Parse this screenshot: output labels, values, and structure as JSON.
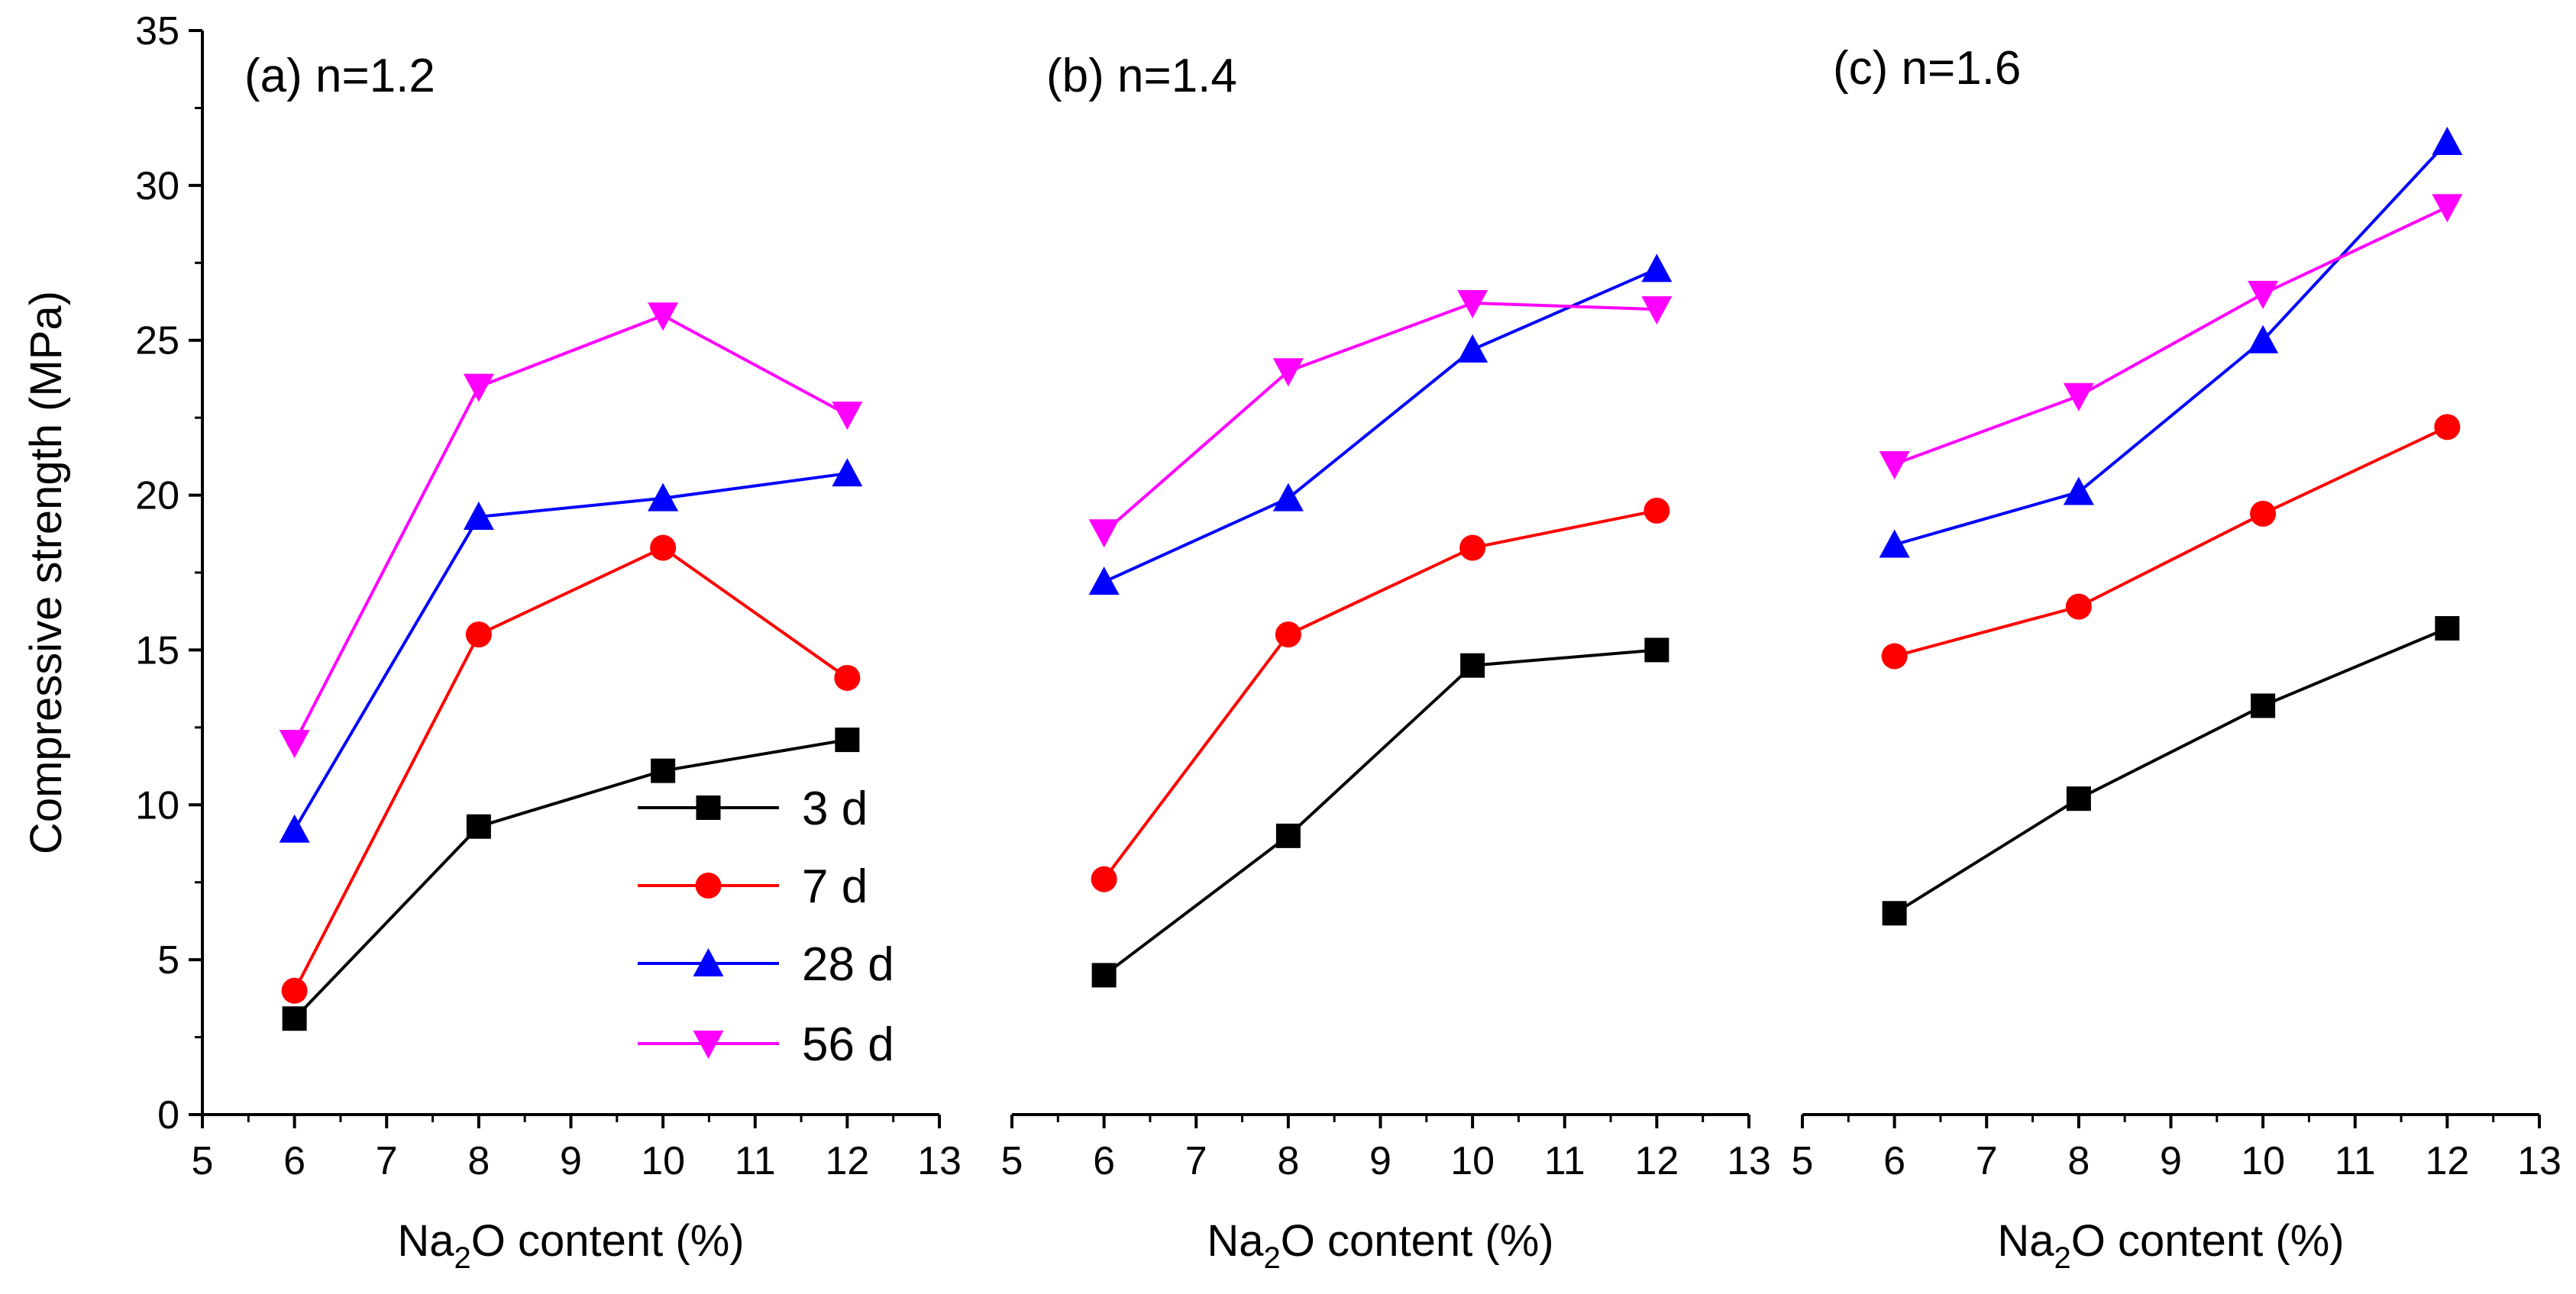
{
  "chart_data": {
    "type": "line",
    "ylabel": "Compressive strength (MPa)",
    "ylim": [
      0,
      35
    ],
    "yticks": [
      "0",
      "5",
      "10",
      "15",
      "20",
      "25",
      "30",
      "35"
    ],
    "xlabel": {
      "main": "Na",
      "sub": "2",
      "tail": "O content (%)"
    },
    "xlim": [
      5,
      13
    ],
    "xticks": [
      "5",
      "6",
      "7",
      "8",
      "9",
      "10",
      "11",
      "12",
      "13"
    ],
    "grid": false,
    "legend_placement": "bottom of first panel",
    "series_styles": [
      {
        "name": "3 d",
        "color": "#000000",
        "marker": "square"
      },
      {
        "name": "7 d",
        "color": "#ff0000",
        "marker": "circle"
      },
      {
        "name": "28 d",
        "color": "#0000ff",
        "marker": "triangle-up"
      },
      {
        "name": "56 d",
        "color": "#ff00ff",
        "marker": "triangle-down"
      }
    ],
    "panels": [
      {
        "title": "(a) n=1.2",
        "x": [
          6,
          8,
          10,
          12
        ],
        "series": [
          {
            "name": "3 d",
            "values": [
              3.1,
              9.3,
              11.1,
              12.1
            ]
          },
          {
            "name": "7 d",
            "values": [
              4.0,
              15.5,
              18.3,
              14.1
            ]
          },
          {
            "name": "28 d",
            "values": [
              9.2,
              19.3,
              19.9,
              20.7
            ]
          },
          {
            "name": "56 d",
            "values": [
              12.0,
              23.5,
              25.8,
              22.6
            ]
          }
        ]
      },
      {
        "title": "(b) n=1.4",
        "x": [
          6,
          8,
          10,
          12
        ],
        "series": [
          {
            "name": "3 d",
            "values": [
              4.5,
              9.0,
              14.5,
              15.0
            ]
          },
          {
            "name": "7 d",
            "values": [
              7.6,
              15.5,
              18.3,
              19.5
            ]
          },
          {
            "name": "28 d",
            "values": [
              17.2,
              19.9,
              24.7,
              27.3
            ]
          },
          {
            "name": "56 d",
            "values": [
              18.8,
              24.0,
              26.2,
              26.0
            ]
          }
        ]
      },
      {
        "title": "(c) n=1.6",
        "x": [
          6,
          8,
          10,
          12
        ],
        "series": [
          {
            "name": "3 d",
            "values": [
              6.5,
              10.2,
              13.2,
              15.7
            ]
          },
          {
            "name": "7 d",
            "values": [
              14.8,
              16.4,
              19.4,
              22.2
            ]
          },
          {
            "name": "28 d",
            "values": [
              18.4,
              20.1,
              25.0,
              31.4
            ]
          },
          {
            "name": "56 d",
            "values": [
              21.0,
              23.2,
              26.5,
              29.3
            ]
          }
        ]
      }
    ]
  }
}
